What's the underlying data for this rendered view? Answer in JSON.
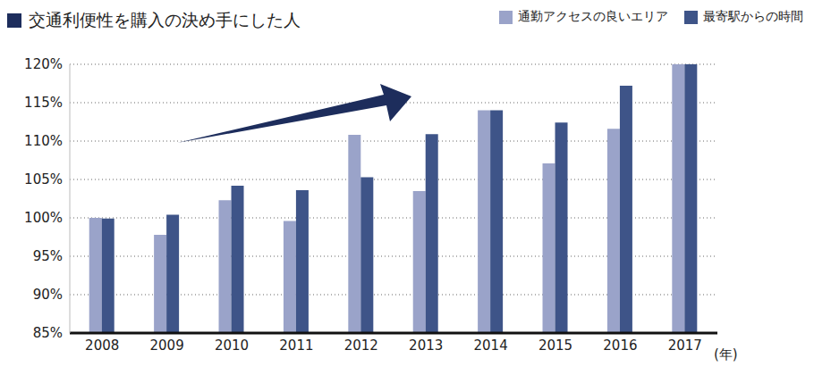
{
  "chart_data": {
    "type": "bar",
    "title": "交通利便性を購入の決め手にした人",
    "x_label": "(年)",
    "categories": [
      "2008",
      "2009",
      "2010",
      "2011",
      "2012",
      "2013",
      "2014",
      "2015",
      "2016",
      "2017"
    ],
    "series": [
      {
        "name": "通勤アクセスの良いエリア",
        "color": "#9aa3c9",
        "values": [
          100,
          97.8,
          102.3,
          99.6,
          110.8,
          103.5,
          114,
          107.1,
          111.6,
          120
        ]
      },
      {
        "name": "最寄駅からの時間",
        "color": "#3e5488",
        "values": [
          99.9,
          100.4,
          104.2,
          103.6,
          105.3,
          110.9,
          114,
          112.4,
          117.2,
          120
        ]
      }
    ],
    "ylim": [
      85,
      120
    ],
    "yticks": [
      {
        "value": 85,
        "label": "85%"
      },
      {
        "value": 90,
        "label": "90%"
      },
      {
        "value": 95,
        "label": "95%"
      },
      {
        "value": 100,
        "label": "100%"
      },
      {
        "value": 105,
        "label": "105%"
      },
      {
        "value": 110,
        "label": "110%"
      },
      {
        "value": 115,
        "label": "115%"
      },
      {
        "value": 120,
        "label": "120%"
      }
    ],
    "grid": true,
    "legend": "top-right"
  }
}
